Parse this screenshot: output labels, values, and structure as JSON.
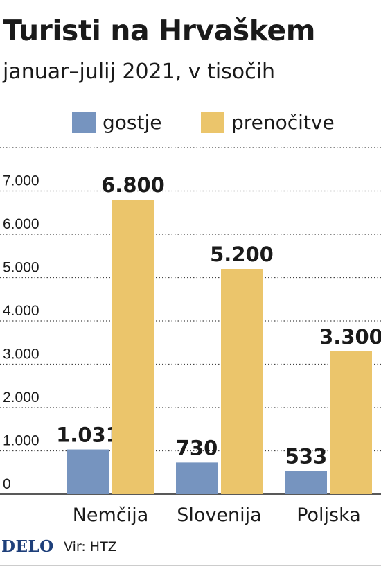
{
  "header": {
    "title": "Turisti na Hrvaškem",
    "subtitle": "januar–julij 2021, v tisočih"
  },
  "legend": [
    {
      "label": "gostje",
      "color": "#7694bf"
    },
    {
      "label": "prenočitve",
      "color": "#ebc56b"
    }
  ],
  "chart_data": {
    "type": "bar",
    "title": "Turisti na Hrvaškem",
    "subtitle": "januar–julij 2021, v tisočih",
    "categories": [
      "Nemčija",
      "Slovenija",
      "Poljska"
    ],
    "series": [
      {
        "name": "gostje",
        "values": [
          1031,
          730,
          533
        ],
        "labels": [
          "1.031",
          "730",
          "533"
        ],
        "color": "#7694bf"
      },
      {
        "name": "prenočitve",
        "values": [
          6800,
          5200,
          3300
        ],
        "labels": [
          "6.800",
          "5.200",
          "3.300"
        ],
        "color": "#ebc56b"
      }
    ],
    "yticks": [
      0,
      1000,
      2000,
      3000,
      4000,
      5000,
      6000,
      7000
    ],
    "ytick_labels": [
      "0",
      "1.000",
      "2.000",
      "3.000",
      "4.000",
      "5.000",
      "6.000",
      "7.000"
    ],
    "ylim": [
      0,
      8000
    ],
    "grid": true,
    "legend_position": "top"
  },
  "footer": {
    "logo": "DELO",
    "source": "Vir: HTZ"
  }
}
